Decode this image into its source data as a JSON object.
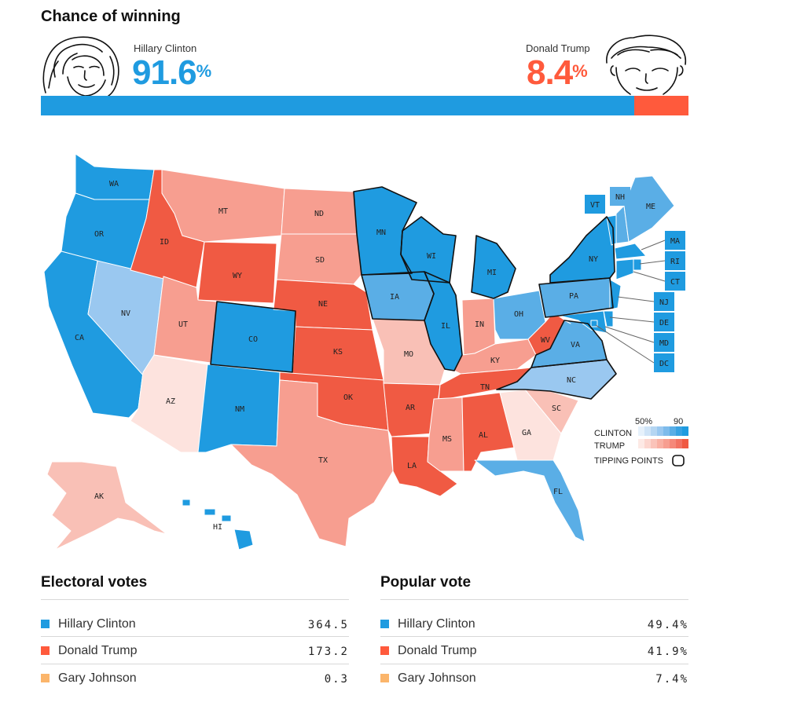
{
  "header": {
    "title": "Chance of winning"
  },
  "clinton": {
    "name": "Hillary Clinton",
    "pct": "91.6",
    "pct_symbol": "%",
    "share": 0.916,
    "color": "#1f9be0"
  },
  "trump": {
    "name": "Donald Trump",
    "pct": "8.4",
    "pct_symbol": "%",
    "share": 0.084,
    "color": "#ff5a3c"
  },
  "states": [
    {
      "abbr": "WA",
      "lean": "clinton",
      "strength": "strong"
    },
    {
      "abbr": "OR",
      "lean": "clinton",
      "strength": "strong"
    },
    {
      "abbr": "CA",
      "lean": "clinton",
      "strength": "strong"
    },
    {
      "abbr": "NV",
      "lean": "clinton",
      "strength": "light"
    },
    {
      "abbr": "ID",
      "lean": "trump",
      "strength": "strong"
    },
    {
      "abbr": "MT",
      "lean": "trump",
      "strength": "medium"
    },
    {
      "abbr": "WY",
      "lean": "trump",
      "strength": "strong"
    },
    {
      "abbr": "UT",
      "lean": "trump",
      "strength": "medium"
    },
    {
      "abbr": "AZ",
      "lean": "trump",
      "strength": "faint"
    },
    {
      "abbr": "CO",
      "lean": "clinton",
      "strength": "strong"
    },
    {
      "abbr": "NM",
      "lean": "clinton",
      "strength": "strong"
    },
    {
      "abbr": "ND",
      "lean": "trump",
      "strength": "medium"
    },
    {
      "abbr": "SD",
      "lean": "trump",
      "strength": "medium"
    },
    {
      "abbr": "NE",
      "lean": "trump",
      "strength": "strong"
    },
    {
      "abbr": "KS",
      "lean": "trump",
      "strength": "strong"
    },
    {
      "abbr": "OK",
      "lean": "trump",
      "strength": "strong"
    },
    {
      "abbr": "TX",
      "lean": "trump",
      "strength": "medium"
    },
    {
      "abbr": "MN",
      "lean": "clinton",
      "strength": "strong"
    },
    {
      "abbr": "IA",
      "lean": "clinton",
      "strength": "medium"
    },
    {
      "abbr": "MO",
      "lean": "trump",
      "strength": "light"
    },
    {
      "abbr": "AR",
      "lean": "trump",
      "strength": "strong"
    },
    {
      "abbr": "LA",
      "lean": "trump",
      "strength": "strong"
    },
    {
      "abbr": "WI",
      "lean": "clinton",
      "strength": "strong"
    },
    {
      "abbr": "IL",
      "lean": "clinton",
      "strength": "strong"
    },
    {
      "abbr": "MI",
      "lean": "clinton",
      "strength": "strong"
    },
    {
      "abbr": "IN",
      "lean": "trump",
      "strength": "medium"
    },
    {
      "abbr": "OH",
      "lean": "clinton",
      "strength": "medium"
    },
    {
      "abbr": "KY",
      "lean": "trump",
      "strength": "medium"
    },
    {
      "abbr": "TN",
      "lean": "trump",
      "strength": "strong"
    },
    {
      "abbr": "MS",
      "lean": "trump",
      "strength": "medium"
    },
    {
      "abbr": "AL",
      "lean": "trump",
      "strength": "strong"
    },
    {
      "abbr": "GA",
      "lean": "trump",
      "strength": "faint"
    },
    {
      "abbr": "FL",
      "lean": "clinton",
      "strength": "medium"
    },
    {
      "abbr": "SC",
      "lean": "trump",
      "strength": "light"
    },
    {
      "abbr": "NC",
      "lean": "clinton",
      "strength": "light"
    },
    {
      "abbr": "VA",
      "lean": "clinton",
      "strength": "medium"
    },
    {
      "abbr": "WV",
      "lean": "trump",
      "strength": "strong"
    },
    {
      "abbr": "PA",
      "lean": "clinton",
      "strength": "medium"
    },
    {
      "abbr": "NY",
      "lean": "clinton",
      "strength": "strong"
    },
    {
      "abbr": "VT",
      "lean": "clinton",
      "strength": "strong"
    },
    {
      "abbr": "NH",
      "lean": "clinton",
      "strength": "medium"
    },
    {
      "abbr": "ME",
      "lean": "clinton",
      "strength": "medium"
    },
    {
      "abbr": "MA",
      "lean": "clinton",
      "strength": "strong"
    },
    {
      "abbr": "RI",
      "lean": "clinton",
      "strength": "strong"
    },
    {
      "abbr": "CT",
      "lean": "clinton",
      "strength": "strong"
    },
    {
      "abbr": "NJ",
      "lean": "clinton",
      "strength": "strong"
    },
    {
      "abbr": "DE",
      "lean": "clinton",
      "strength": "strong"
    },
    {
      "abbr": "MD",
      "lean": "clinton",
      "strength": "strong"
    },
    {
      "abbr": "DC",
      "lean": "clinton",
      "strength": "strong"
    },
    {
      "abbr": "AK",
      "lean": "trump",
      "strength": "light"
    },
    {
      "abbr": "HI",
      "lean": "clinton",
      "strength": "strong"
    }
  ],
  "legend": {
    "low_label": "50%",
    "high_label": "90",
    "clinton_label": "CLINTON",
    "trump_label": "TRUMP",
    "tipping_label": "TIPPING POINTS"
  },
  "electoral": {
    "title": "Electoral votes",
    "rows": [
      {
        "name": "Hillary Clinton",
        "value": "364.5",
        "color": "#1f9be0"
      },
      {
        "name": "Donald Trump",
        "value": "173.2",
        "color": "#ff5a3c"
      },
      {
        "name": "Gary Johnson",
        "value": "0.3",
        "color": "#fbb56b"
      }
    ]
  },
  "popular": {
    "title": "Popular vote",
    "rows": [
      {
        "name": "Hillary Clinton",
        "value": "49.4%",
        "color": "#1f9be0"
      },
      {
        "name": "Donald Trump",
        "value": "41.9%",
        "color": "#ff5a3c"
      },
      {
        "name": "Gary Johnson",
        "value": "7.4%",
        "color": "#fbb56b"
      }
    ]
  }
}
